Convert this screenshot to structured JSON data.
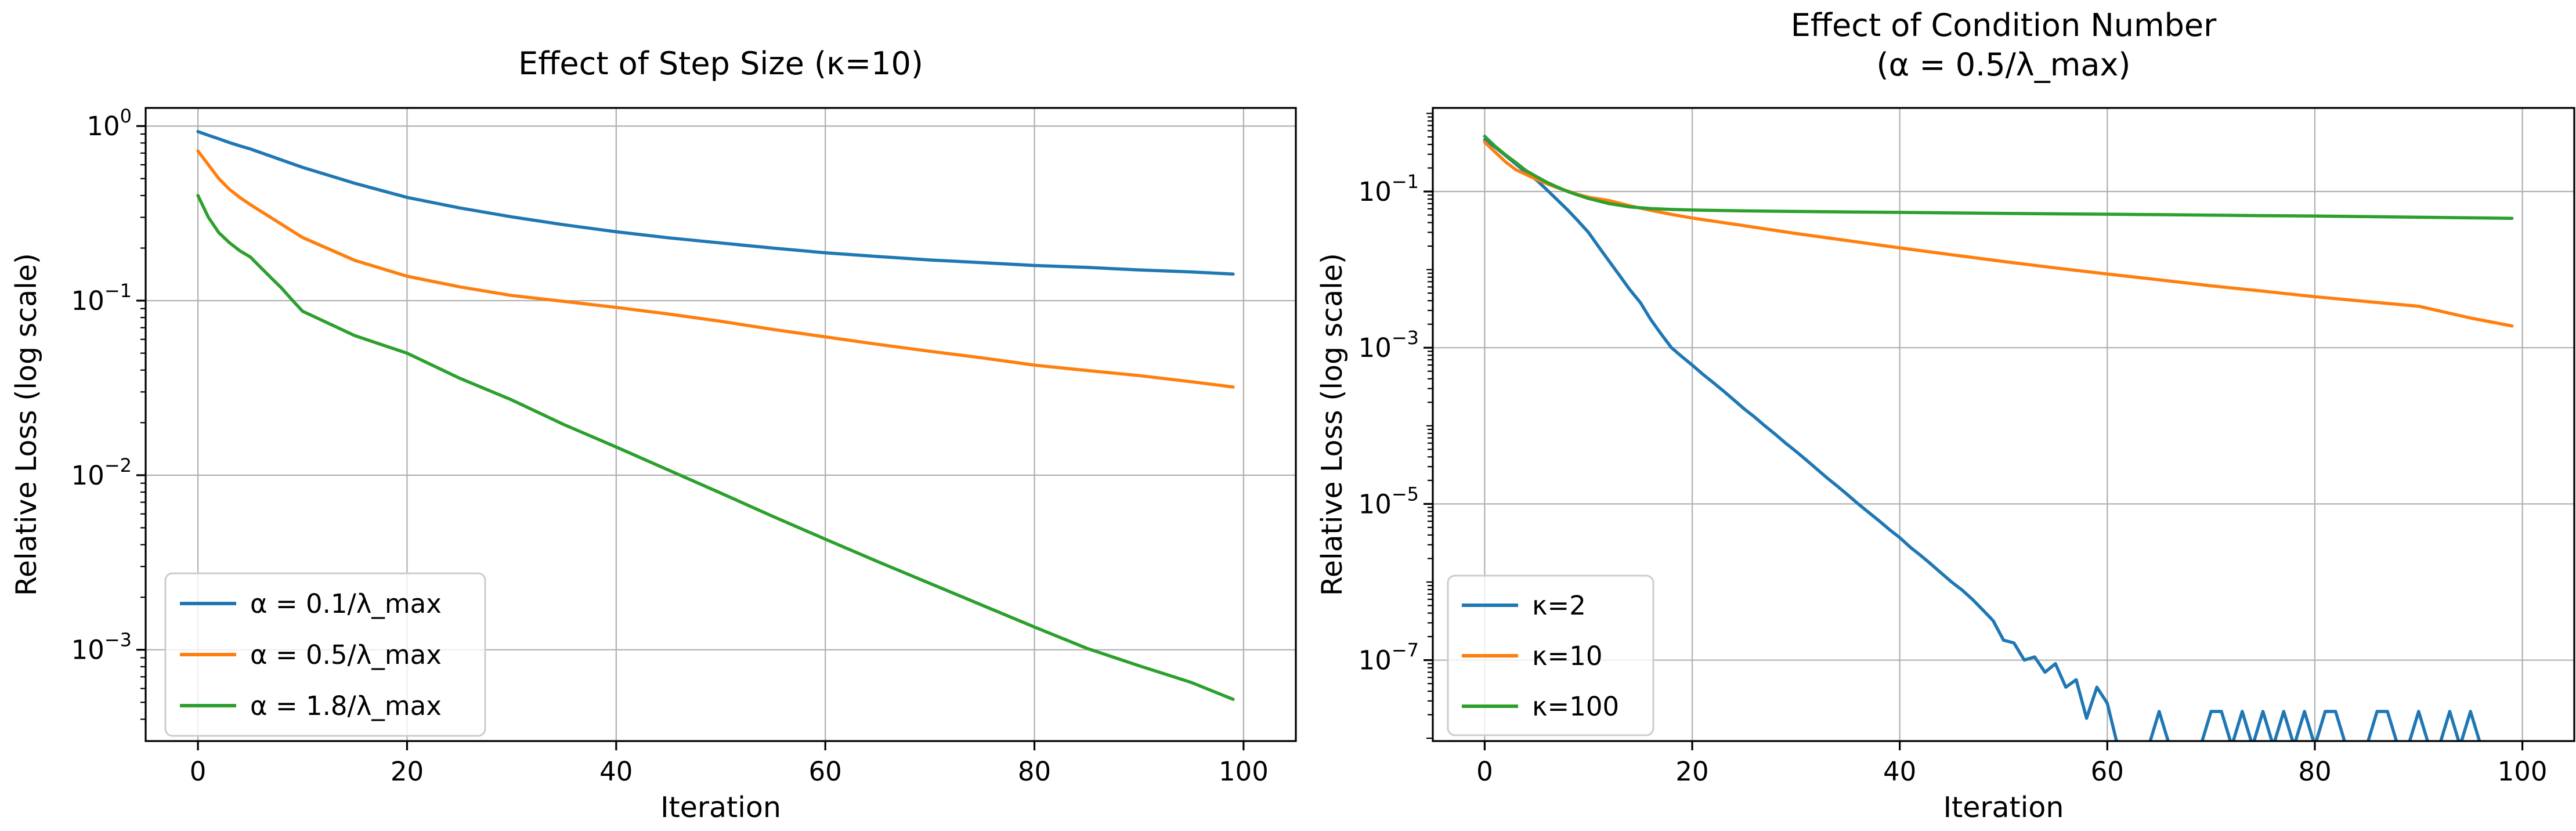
{
  "figure": {
    "background": "#ffffff",
    "grid_color": "#b0b0b0",
    "spine_color": "#000000",
    "text_color": "#000000"
  },
  "chart_data": [
    {
      "type": "line",
      "title_lines": [
        "Effect of Step Size (κ=10)"
      ],
      "xlabel": "Iteration",
      "ylabel": "Relative Loss (log scale)",
      "x_ticks": [
        0,
        20,
        40,
        60,
        80,
        100
      ],
      "y_tick_exponents": [
        0,
        -1,
        -2,
        -3
      ],
      "xlim": [
        -5,
        105
      ],
      "ylim": [
        0.0003,
        1.27
      ],
      "grid": true,
      "legend_position": "lower left",
      "series": [
        {
          "name": "α = 0.1/λ_max",
          "color": "#1f77b4",
          "x": [
            0,
            1,
            2,
            3,
            4,
            5,
            10,
            15,
            20,
            25,
            30,
            35,
            40,
            45,
            50,
            55,
            60,
            65,
            70,
            75,
            80,
            85,
            90,
            95,
            99
          ],
          "y": [
            0.93,
            0.885,
            0.845,
            0.805,
            0.77,
            0.74,
            0.58,
            0.47,
            0.39,
            0.34,
            0.302,
            0.272,
            0.248,
            0.229,
            0.214,
            0.2,
            0.188,
            0.179,
            0.171,
            0.165,
            0.159,
            0.155,
            0.15,
            0.146,
            0.142
          ]
        },
        {
          "name": "α = 0.5/λ_max",
          "color": "#ff7f0e",
          "x": [
            0,
            1,
            2,
            3,
            4,
            5,
            10,
            15,
            20,
            25,
            30,
            35,
            40,
            45,
            50,
            55,
            60,
            65,
            70,
            75,
            80,
            85,
            90,
            95,
            99
          ],
          "y": [
            0.72,
            0.6,
            0.5,
            0.435,
            0.39,
            0.355,
            0.23,
            0.17,
            0.138,
            0.12,
            0.107,
            0.099,
            0.0915,
            0.0838,
            0.0762,
            0.0684,
            0.062,
            0.0562,
            0.0513,
            0.047,
            0.0427,
            0.0398,
            0.0372,
            0.0343,
            0.032
          ]
        },
        {
          "name": "α = 1.8/λ_max",
          "color": "#2ca02c",
          "x": [
            0,
            1,
            2,
            3,
            4,
            5,
            6,
            7,
            8,
            9,
            10,
            15,
            20,
            25,
            30,
            35,
            40,
            45,
            50,
            55,
            60,
            65,
            70,
            75,
            80,
            85,
            90,
            95,
            99
          ],
          "y": [
            0.4,
            0.3,
            0.245,
            0.215,
            0.193,
            0.178,
            0.155,
            0.135,
            0.118,
            0.101,
            0.087,
            0.063,
            0.05,
            0.036,
            0.027,
            0.0195,
            0.0145,
            0.0107,
            0.0079,
            0.0058,
            0.0043,
            0.0032,
            0.0024,
            0.0018,
            0.00135,
            0.00102,
            0.00081,
            0.00065,
            0.00052
          ]
        }
      ]
    },
    {
      "type": "line",
      "title_lines": [
        "Effect of Condition Number",
        "(α = 0.5/λ_max)"
      ],
      "xlabel": "Iteration",
      "ylabel": "Relative Loss (log scale)",
      "x_ticks": [
        0,
        20,
        40,
        60,
        80,
        100
      ],
      "y_tick_exponents": [
        -1,
        -3,
        -5,
        -7
      ],
      "xlim": [
        -5,
        105
      ],
      "ylim": [
        9.2e-09,
        1.175
      ],
      "grid": true,
      "legend_position": "lower left",
      "series": [
        {
          "name": "κ=2",
          "color": "#1f77b4",
          "x": [
            0,
            1,
            2,
            3,
            4,
            5,
            6,
            7,
            8,
            9,
            10,
            11,
            12,
            13,
            14,
            15,
            16,
            17,
            18,
            19,
            20,
            21,
            22,
            23,
            24,
            25,
            26,
            27,
            28,
            29,
            30,
            31,
            32,
            33,
            34,
            35,
            36,
            37,
            38,
            39,
            40,
            41,
            42,
            43,
            44,
            45,
            46,
            47,
            48,
            49,
            50,
            51,
            52,
            53,
            54,
            55,
            56,
            57,
            58,
            59,
            60,
            61,
            62,
            63,
            64,
            65,
            66,
            67,
            68,
            69,
            70,
            71,
            72,
            73,
            74,
            75,
            76,
            77,
            78,
            79,
            80,
            81,
            82,
            83,
            84,
            85,
            86,
            87,
            88,
            89,
            90,
            91,
            92,
            93,
            94,
            95,
            96,
            97,
            98,
            99
          ],
          "y": [
            0.46,
            0.37,
            0.29,
            0.225,
            0.175,
            0.14,
            0.105,
            0.078,
            0.058,
            0.042,
            0.03,
            0.0195,
            0.0128,
            0.0084,
            0.0055,
            0.0038,
            0.0023,
            0.0015,
            0.001,
            0.00077,
            0.0006,
            0.00046,
            0.00036,
            0.00028,
            0.000215,
            0.000165,
            0.00013,
            0.0001,
            7.8e-05,
            6e-05,
            4.7e-05,
            3.65e-05,
            2.8e-05,
            2.15e-05,
            1.68e-05,
            1.3e-05,
            1e-05,
            7.8e-06,
            6.1e-06,
            4.7e-06,
            3.7e-06,
            2.8e-06,
            2.2e-06,
            1.7e-06,
            1.3e-06,
            1e-06,
            7.9e-07,
            6e-07,
            4.4e-07,
            3.2e-07,
            1.8e-07,
            1.66e-07,
            1e-07,
            1.1e-07,
            7e-08,
            9e-08,
            4.5e-08,
            5.6e-08,
            1.8e-08,
            4.5e-08,
            2.8e-08,
            8e-09,
            8e-09,
            8e-09,
            8e-09,
            2.2e-08,
            8e-09,
            8e-09,
            8e-09,
            8e-09,
            2.2e-08,
            2.2e-08,
            8e-09,
            2.2e-08,
            8e-09,
            2.2e-08,
            8e-09,
            2.2e-08,
            8e-09,
            2.2e-08,
            8e-09,
            2.2e-08,
            2.2e-08,
            8e-09,
            8e-09,
            8e-09,
            2.2e-08,
            2.2e-08,
            8e-09,
            8e-09,
            2.2e-08,
            8e-09,
            8e-09,
            2.2e-08,
            8e-09,
            2.2e-08,
            8e-09,
            8e-09,
            8e-09,
            8e-09
          ]
        },
        {
          "name": "κ=10",
          "color": "#ff7f0e",
          "x": [
            0,
            1,
            2,
            3,
            4,
            5,
            6,
            7,
            8,
            9,
            10,
            12,
            14,
            16,
            18,
            20,
            25,
            30,
            35,
            40,
            45,
            50,
            55,
            60,
            65,
            70,
            75,
            80,
            85,
            90,
            95,
            99
          ],
          "y": [
            0.43,
            0.32,
            0.24,
            0.19,
            0.165,
            0.143,
            0.126,
            0.112,
            0.101,
            0.0915,
            0.0845,
            0.0765,
            0.0655,
            0.0575,
            0.051,
            0.0458,
            0.0365,
            0.029,
            0.0235,
            0.019,
            0.0155,
            0.0127,
            0.0105,
            0.0088,
            0.0074,
            0.0062,
            0.0053,
            0.0045,
            0.0039,
            0.0034,
            0.0024,
            0.0019
          ]
        },
        {
          "name": "κ=100",
          "color": "#2ca02c",
          "x": [
            0,
            1,
            2,
            3,
            4,
            5,
            6,
            7,
            8,
            9,
            10,
            12,
            14,
            16,
            18,
            20,
            25,
            30,
            35,
            40,
            45,
            50,
            55,
            60,
            65,
            70,
            75,
            80,
            85,
            90,
            95,
            99
          ],
          "y": [
            0.51,
            0.38,
            0.295,
            0.235,
            0.185,
            0.155,
            0.131,
            0.114,
            0.1,
            0.09,
            0.0815,
            0.07,
            0.0635,
            0.0605,
            0.059,
            0.058,
            0.0565,
            0.0555,
            0.0548,
            0.054,
            0.0532,
            0.0525,
            0.0518,
            0.0512,
            0.0505,
            0.0498,
            0.0491,
            0.0485,
            0.0477,
            0.0468,
            0.046,
            0.0454
          ]
        }
      ]
    }
  ]
}
